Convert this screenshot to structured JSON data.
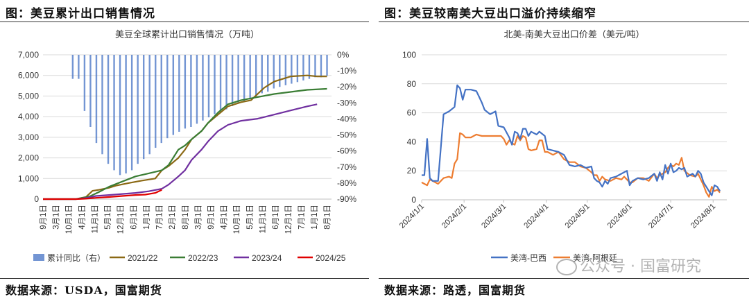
{
  "left": {
    "fig_title": "图：美豆累计出口销售情况",
    "source": "数据来源：USDA，国富期货"
  },
  "right": {
    "fig_title": "图：美豆较南美大豆出口溢价持续缩窄",
    "source": "数据来源：路透，国富期货"
  },
  "watermark": "公众号 · 国富研究",
  "chart_data": [
    {
      "type": "line",
      "title": "美豆全球累计出口销售情况（万吨）",
      "x": [
        "9月1日",
        "10月1日",
        "11月1日",
        "12月1日",
        "1月1日",
        "2月1日",
        "3月1日",
        "4月1日",
        "5月1日",
        "6月1日",
        "7月1日",
        "8月1日"
      ],
      "ylim": [
        0,
        7000
      ],
      "yticks": [
        "0",
        "1,000",
        "2,000",
        "3,000",
        "4,000",
        "5,000",
        "6,000",
        "7,000"
      ],
      "y2lim": [
        -90,
        0
      ],
      "y2ticks": [
        "0%",
        "-10%",
        "-20%",
        "-30%",
        "-40%",
        "-50%",
        "-60%",
        "-70%",
        "-80%",
        "-90%"
      ],
      "x_range_weeks": [
        0,
        52
      ],
      "bar_series": {
        "name": "累计同比（右）",
        "color": "#4472c4",
        "week_start": 9,
        "values": [
          -15,
          -15,
          -35,
          -45,
          -55,
          -62,
          -68,
          -72,
          -75,
          -74,
          -72,
          -68,
          -65,
          -62,
          -58,
          -55,
          -52,
          -50,
          -48,
          -46,
          -45,
          -43,
          -41,
          -39,
          -37,
          -36,
          -34,
          -32,
          -30,
          -29,
          -27,
          -26,
          -24,
          -23,
          -21,
          -20,
          -19,
          -18,
          -17,
          -16,
          -15,
          -14,
          -14,
          -13
        ]
      },
      "series": [
        {
          "name": "2021/22",
          "color": "#8b6914",
          "points": [
            [
              0,
              0
            ],
            [
              10,
              0
            ],
            [
              13,
              100
            ],
            [
              15,
              400
            ],
            [
              17,
              450
            ],
            [
              20,
              550
            ],
            [
              22,
              650
            ],
            [
              26,
              780
            ],
            [
              30,
              900
            ],
            [
              34,
              1000
            ],
            [
              36,
              1400
            ],
            [
              38,
              1600
            ],
            [
              41,
              2000
            ],
            [
              43,
              2400
            ],
            [
              45,
              2900
            ],
            [
              48,
              3300
            ],
            [
              50,
              3700
            ],
            [
              53,
              4100
            ],
            [
              56,
              4500
            ],
            [
              60,
              4700
            ],
            [
              63,
              4800
            ],
            [
              67,
              5400
            ],
            [
              70,
              5700
            ],
            [
              75,
              5950
            ],
            [
              80,
              6000
            ],
            [
              83,
              5950
            ],
            [
              86,
              5950
            ]
          ]
        },
        {
          "name": "2022/23",
          "color": "#3a7d34",
          "points": [
            [
              0,
              0
            ],
            [
              10,
              0
            ],
            [
              14,
              120
            ],
            [
              17,
              350
            ],
            [
              20,
              600
            ],
            [
              24,
              850
            ],
            [
              28,
              1100
            ],
            [
              32,
              1250
            ],
            [
              36,
              1400
            ],
            [
              38,
              1650
            ],
            [
              41,
              2400
            ],
            [
              43,
              2600
            ],
            [
              45,
              2900
            ],
            [
              48,
              3300
            ],
            [
              50,
              3700
            ],
            [
              53,
              4200
            ],
            [
              56,
              4600
            ],
            [
              60,
              4800
            ],
            [
              65,
              4950
            ],
            [
              70,
              5100
            ],
            [
              75,
              5200
            ],
            [
              80,
              5300
            ],
            [
              86,
              5350
            ]
          ]
        },
        {
          "name": "2023/24",
          "color": "#7030a0",
          "points": [
            [
              0,
              0
            ],
            [
              10,
              0
            ],
            [
              13,
              50
            ],
            [
              16,
              150
            ],
            [
              20,
              200
            ],
            [
              24,
              250
            ],
            [
              28,
              300
            ],
            [
              32,
              380
            ],
            [
              36,
              500
            ],
            [
              38,
              700
            ],
            [
              41,
              1100
            ],
            [
              43,
              1400
            ],
            [
              45,
              1900
            ],
            [
              48,
              2400
            ],
            [
              50,
              2800
            ],
            [
              53,
              3300
            ],
            [
              56,
              3600
            ],
            [
              60,
              3800
            ],
            [
              65,
              3900
            ],
            [
              70,
              4100
            ],
            [
              75,
              4300
            ],
            [
              80,
              4500
            ],
            [
              83,
              4600
            ]
          ]
        },
        {
          "name": "2024/25",
          "color": "#e00000",
          "points": [
            [
              0,
              0
            ],
            [
              10,
              0
            ],
            [
              13,
              20
            ],
            [
              16,
              60
            ],
            [
              20,
              100
            ],
            [
              24,
              150
            ],
            [
              28,
              200
            ],
            [
              31,
              220
            ],
            [
              34,
              300
            ],
            [
              36,
              450
            ]
          ]
        }
      ]
    },
    {
      "type": "line",
      "title": "北美-南美大豆出口价差（美元/吨）",
      "x": [
        "2024/1/1",
        "2024/2/1",
        "2024/3/1",
        "2024/4/1",
        "2024/5/1",
        "2024/6/1",
        "2024/7/1",
        "2024/8/1"
      ],
      "ylim": [
        0,
        100
      ],
      "yticks": [
        "0",
        "20",
        "40",
        "60",
        "80",
        "100"
      ],
      "x_range_days": [
        0,
        223
      ],
      "series": [
        {
          "name": "美湾-巴西",
          "color": "#4472c4",
          "points": [
            [
              0,
              17
            ],
            [
              2,
              17
            ],
            [
              4,
              42
            ],
            [
              6,
              15
            ],
            [
              8,
              13
            ],
            [
              12,
              13
            ],
            [
              16,
              59
            ],
            [
              20,
              61
            ],
            [
              24,
              64
            ],
            [
              26,
              79
            ],
            [
              28,
              77
            ],
            [
              30,
              69
            ],
            [
              32,
              76
            ],
            [
              36,
              76
            ],
            [
              40,
              75
            ],
            [
              42,
              71
            ],
            [
              44,
              67
            ],
            [
              46,
              62
            ],
            [
              50,
              59
            ],
            [
              54,
              61
            ],
            [
              56,
              51
            ],
            [
              60,
              50
            ],
            [
              64,
              43
            ],
            [
              66,
              38
            ],
            [
              68,
              47
            ],
            [
              70,
              46
            ],
            [
              72,
              42
            ],
            [
              74,
              49
            ],
            [
              76,
              49
            ],
            [
              78,
              44
            ],
            [
              80,
              47
            ],
            [
              84,
              45
            ],
            [
              86,
              47
            ],
            [
              90,
              44
            ],
            [
              92,
              35
            ],
            [
              96,
              34
            ],
            [
              100,
              33
            ],
            [
              104,
              31
            ],
            [
              108,
              24
            ],
            [
              112,
              23
            ],
            [
              116,
              24
            ],
            [
              120,
              22
            ],
            [
              124,
              23
            ],
            [
              126,
              15
            ],
            [
              128,
              13
            ],
            [
              130,
              12
            ],
            [
              132,
              9
            ],
            [
              134,
              13
            ],
            [
              136,
              11
            ],
            [
              138,
              15
            ],
            [
              142,
              16
            ],
            [
              146,
              18
            ],
            [
              150,
              20
            ],
            [
              152,
              10
            ],
            [
              154,
              13
            ],
            [
              158,
              15
            ],
            [
              162,
              14
            ],
            [
              166,
              15
            ],
            [
              170,
              18
            ],
            [
              172,
              13
            ],
            [
              174,
              19
            ],
            [
              176,
              14
            ],
            [
              178,
              24
            ],
            [
              180,
              18
            ],
            [
              182,
              25
            ],
            [
              184,
              19
            ],
            [
              186,
              20
            ],
            [
              188,
              22
            ],
            [
              190,
              21
            ],
            [
              192,
              22
            ],
            [
              194,
              16
            ],
            [
              198,
              18
            ],
            [
              200,
              16
            ],
            [
              202,
              20
            ],
            [
              204,
              18
            ],
            [
              206,
              12
            ],
            [
              208,
              9
            ],
            [
              210,
              6
            ],
            [
              212,
              3
            ],
            [
              214,
              10
            ],
            [
              216,
              9
            ],
            [
              218,
              6
            ]
          ]
        },
        {
          "name": "美湾-阿根廷",
          "color": "#ed7d31",
          "points": [
            [
              0,
              12
            ],
            [
              2,
              11
            ],
            [
              4,
              10
            ],
            [
              6,
              14
            ],
            [
              8,
              13
            ],
            [
              12,
              11
            ],
            [
              16,
              15
            ],
            [
              20,
              16
            ],
            [
              22,
              15
            ],
            [
              24,
              25
            ],
            [
              26,
              28
            ],
            [
              28,
              46
            ],
            [
              30,
              45
            ],
            [
              32,
              43
            ],
            [
              36,
              43
            ],
            [
              40,
              45
            ],
            [
              44,
              44
            ],
            [
              48,
              44
            ],
            [
              52,
              44
            ],
            [
              56,
              44
            ],
            [
              58,
              44
            ],
            [
              60,
              42
            ],
            [
              62,
              38
            ],
            [
              64,
              41
            ],
            [
              66,
              39
            ],
            [
              68,
              38
            ],
            [
              70,
              44
            ],
            [
              72,
              41
            ],
            [
              74,
              44
            ],
            [
              76,
              43
            ],
            [
              78,
              35
            ],
            [
              80,
              34
            ],
            [
              84,
              35
            ],
            [
              86,
              41
            ],
            [
              88,
              41
            ],
            [
              90,
              33
            ],
            [
              92,
              33
            ],
            [
              96,
              31
            ],
            [
              100,
              33
            ],
            [
              104,
              28
            ],
            [
              108,
              26
            ],
            [
              112,
              26
            ],
            [
              116,
              23
            ],
            [
              120,
              22
            ],
            [
              124,
              19
            ],
            [
              126,
              17
            ],
            [
              128,
              17
            ],
            [
              130,
              13
            ],
            [
              132,
              16
            ],
            [
              134,
              14
            ],
            [
              138,
              13
            ],
            [
              142,
              15
            ],
            [
              146,
              14
            ],
            [
              148,
              16
            ],
            [
              152,
              12
            ],
            [
              154,
              12
            ],
            [
              158,
              15
            ],
            [
              162,
              15
            ],
            [
              166,
              13
            ],
            [
              170,
              18
            ],
            [
              172,
              15
            ],
            [
              174,
              17
            ],
            [
              176,
              18
            ],
            [
              178,
              19
            ],
            [
              180,
              22
            ],
            [
              182,
              24
            ],
            [
              184,
              23
            ],
            [
              186,
              25
            ],
            [
              188,
              24
            ],
            [
              190,
              29
            ],
            [
              192,
              20
            ],
            [
              196,
              17
            ],
            [
              200,
              16
            ],
            [
              202,
              18
            ],
            [
              204,
              14
            ],
            [
              206,
              10
            ],
            [
              208,
              5
            ],
            [
              210,
              2
            ],
            [
              212,
              9
            ],
            [
              214,
              6
            ],
            [
              216,
              7
            ],
            [
              218,
              5
            ]
          ]
        }
      ]
    }
  ]
}
